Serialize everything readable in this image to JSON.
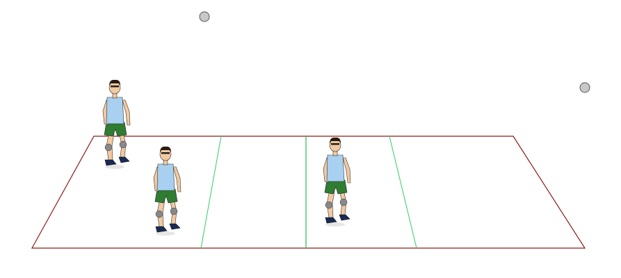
{
  "colors": {
    "background": "#ffffff",
    "court_outline": "#8b1a1a",
    "attack_lines": "#33cc66",
    "center_line": "#22bb55",
    "ball_fill": "#c8c8c8",
    "ball_stroke": "#555555",
    "player_shirt": "#a8d0f0",
    "player_shorts": "#2e7d32",
    "player_skin": "#f2c9a0",
    "player_hair": "#2a1a10",
    "player_shoes": "#1a2a55",
    "player_kneepads": "#888888"
  },
  "icons": {
    "ball": "ball-icon",
    "player": "player-icon"
  },
  "scene": {
    "player_count": 3,
    "ball_count": 2
  }
}
